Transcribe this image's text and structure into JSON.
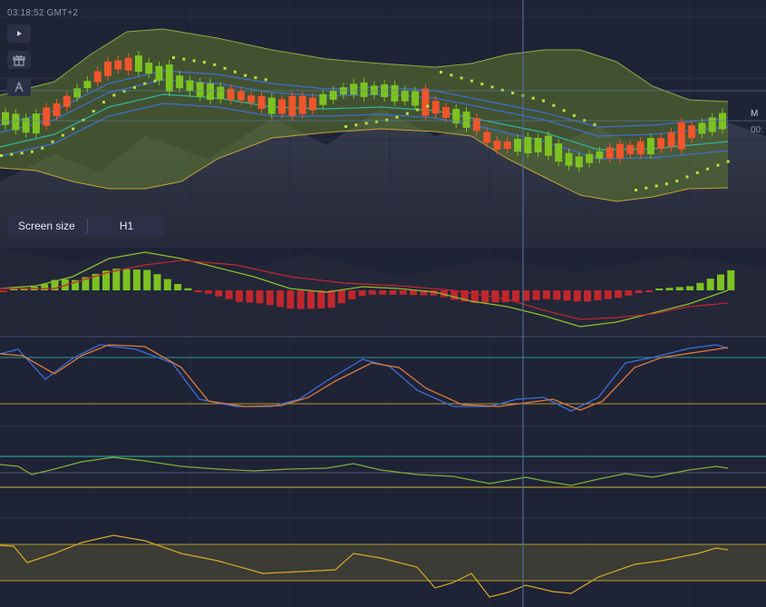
{
  "clock": "03:18:52 GMT+2",
  "timeframe": {
    "label": "Screen size",
    "value": "H1"
  },
  "pair_label": "M",
  "pair_price": "00:",
  "icons": [
    "play-icon",
    "gift-icon",
    "text-tool-icon"
  ],
  "colors": {
    "background": "#1f2336",
    "bull_candle": "#7cc221",
    "bear_candle": "#f0552b",
    "bollinger_fill": "#5f7a2e",
    "envelope_blue": "#3d6fd6",
    "envelope_teal": "#2fb5a0",
    "parabolic_sar": "#b9e23a",
    "macd_signal": "#c0272d",
    "stoch_k": "#3a6fe0",
    "stoch_d": "#e07b39",
    "level_line_teal": "#2c9a8c",
    "level_line_gold": "#b49a2a",
    "cci_line": "#7fb035",
    "rsi_line": "#d9a823"
  }
}
